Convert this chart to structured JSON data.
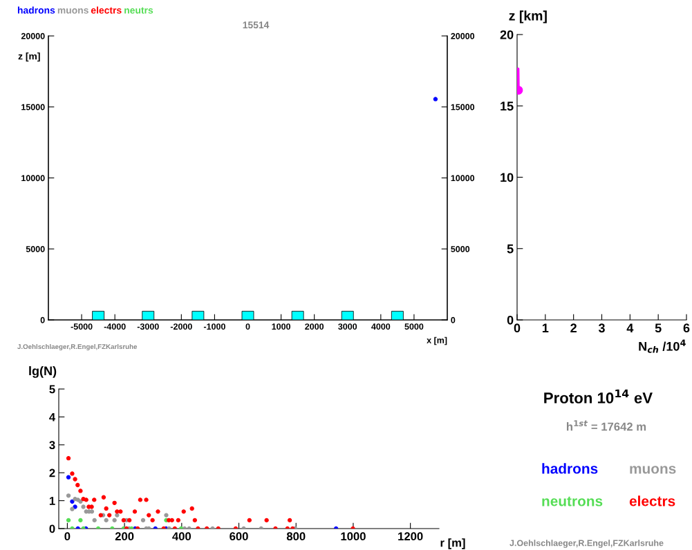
{
  "chart_data": [
    {
      "type": "scatter",
      "title": "15514",
      "xlabel": "x [m]",
      "ylabel": "z [m]",
      "xlim": [
        -6000,
        6000
      ],
      "xticks": [
        -5000,
        -4000,
        -3000,
        -2000,
        -1000,
        0,
        1000,
        2000,
        3000,
        4000,
        5000
      ],
      "ylim": [
        0,
        20000
      ],
      "yticks": [
        0,
        5000,
        10000,
        15000,
        20000
      ],
      "y2lim": [
        0,
        20000
      ],
      "y2ticks": [
        0,
        5000,
        10000,
        15000,
        20000
      ],
      "legend": "top left",
      "grid": false,
      "marker": "circle",
      "annotations": [
        "J.Oehlschlaeger,R.Engel,FZKarlsruhe"
      ],
      "series": [
        {
          "name": "hadrons",
          "color": "#0000ff",
          "x": [
            5645
          ],
          "values": [
            15550
          ]
        },
        {
          "name": "muons",
          "color": "#999999"
        },
        {
          "name": "electrs",
          "color": "#ff0000"
        },
        {
          "name": "neutrs",
          "color": "#55dd55"
        },
        {
          "color": "#00ffff",
          "marker": "square",
          "x": [
            -4500,
            -3000,
            -1500,
            0,
            1500,
            3000,
            4500
          ],
          "values": [
            200,
            200,
            200,
            200,
            200,
            200,
            200
          ]
        }
      ]
    },
    {
      "type": "line",
      "xlabel": "N$_{ch}$ /10$^{4}$",
      "ylabel": "z [km]",
      "xlim": [
        0,
        6
      ],
      "xticks": [
        0,
        1,
        2,
        3,
        4,
        5,
        6
      ],
      "ylim": [
        0,
        20
      ],
      "yticks": [
        0,
        5,
        10,
        15,
        20
      ],
      "grid": false,
      "series": [
        {
          "color": "#ff00ff",
          "x": [
            0.04,
            0.05
          ],
          "values": [
            17.6,
            16.1
          ],
          "marker": "none"
        },
        {
          "type": "scatter",
          "color": "#ff00ff",
          "x": [
            0.05
          ],
          "values": [
            16.1
          ],
          "marker": "circle"
        }
      ]
    },
    {
      "type": "scatter",
      "xlabel": "r [m]",
      "ylabel": "lg(N)",
      "xlim": [
        -30,
        1300
      ],
      "xticks": [
        0,
        200,
        400,
        600,
        800,
        1000,
        1200
      ],
      "ylim": [
        0,
        5
      ],
      "yticks": [
        0,
        1,
        2,
        3,
        4,
        5
      ],
      "legend": "right",
      "grid": false,
      "marker": "circle",
      "annotations": [
        "Proton 10$^{14}$ eV",
        "h$^{1st}$ = 17642 m",
        "J.Oehlschlaeger,R.Engel,FZKarlsruhe"
      ],
      "series": [
        {
          "name": "hadrons",
          "color": "#0000ff",
          "x": [
            4,
            17,
            27,
            37,
            65,
            237,
            308,
            345,
            940
          ],
          "values": [
            1.84,
            0.97,
            0.78,
            0,
            0,
            0,
            0,
            0,
            0
          ]
        },
        {
          "name": "muons",
          "color": "#999999",
          "x": [
            4,
            17,
            27,
            37,
            46,
            56,
            66,
            76,
            86,
            95,
            125,
            136,
            165,
            174,
            207,
            265,
            346,
            216,
            276,
            285,
            356,
            410,
            426,
            508,
            617,
            678,
            797
          ],
          "values": [
            1.18,
            0.7,
            1.06,
            1.03,
            0.97,
            0.78,
            0.61,
            0.61,
            0.61,
            0.3,
            0.48,
            0.3,
            0.3,
            0.48,
            0.3,
            0.3,
            0.48,
            0,
            0,
            0,
            0,
            0,
            0,
            0,
            0,
            0,
            0
          ]
        },
        {
          "name": "neutrons",
          "color": "#55dd55",
          "x": [
            4,
            46,
            346,
            17,
            56,
            108,
            157,
            197,
            225,
            398
          ],
          "values": [
            0.3,
            0.3,
            0.3,
            0,
            0,
            0,
            0,
            0,
            0,
            0
          ]
        },
        {
          "name": "electrs",
          "color": "#ff0000",
          "x": [
            4,
            17,
            27,
            36,
            46,
            56,
            66,
            75,
            85,
            94,
            117,
            127,
            136,
            147,
            165,
            174,
            186,
            197,
            217,
            236,
            255,
            276,
            285,
            298,
            317,
            355,
            366,
            388,
            407,
            436,
            446,
            637,
            697,
            778,
            207,
            246,
            337,
            376,
            457,
            488,
            528,
            589,
            728,
            770,
            788,
            999
          ],
          "values": [
            2.52,
            1.97,
            1.77,
            1.56,
            1.35,
            1.06,
            1.03,
            0.78,
            0.78,
            1.03,
            0.48,
            1.12,
            0.72,
            0.48,
            0.92,
            0.61,
            0.61,
            0.3,
            0.3,
            0.61,
            1.03,
            1.03,
            0.48,
            0.3,
            0.61,
            0.3,
            0.3,
            0.3,
            0.61,
            0.72,
            0.3,
            0.3,
            0.3,
            0.3,
            0,
            0,
            0,
            0,
            0,
            0,
            0,
            0,
            0,
            0,
            0,
            0
          ]
        }
      ]
    }
  ]
}
